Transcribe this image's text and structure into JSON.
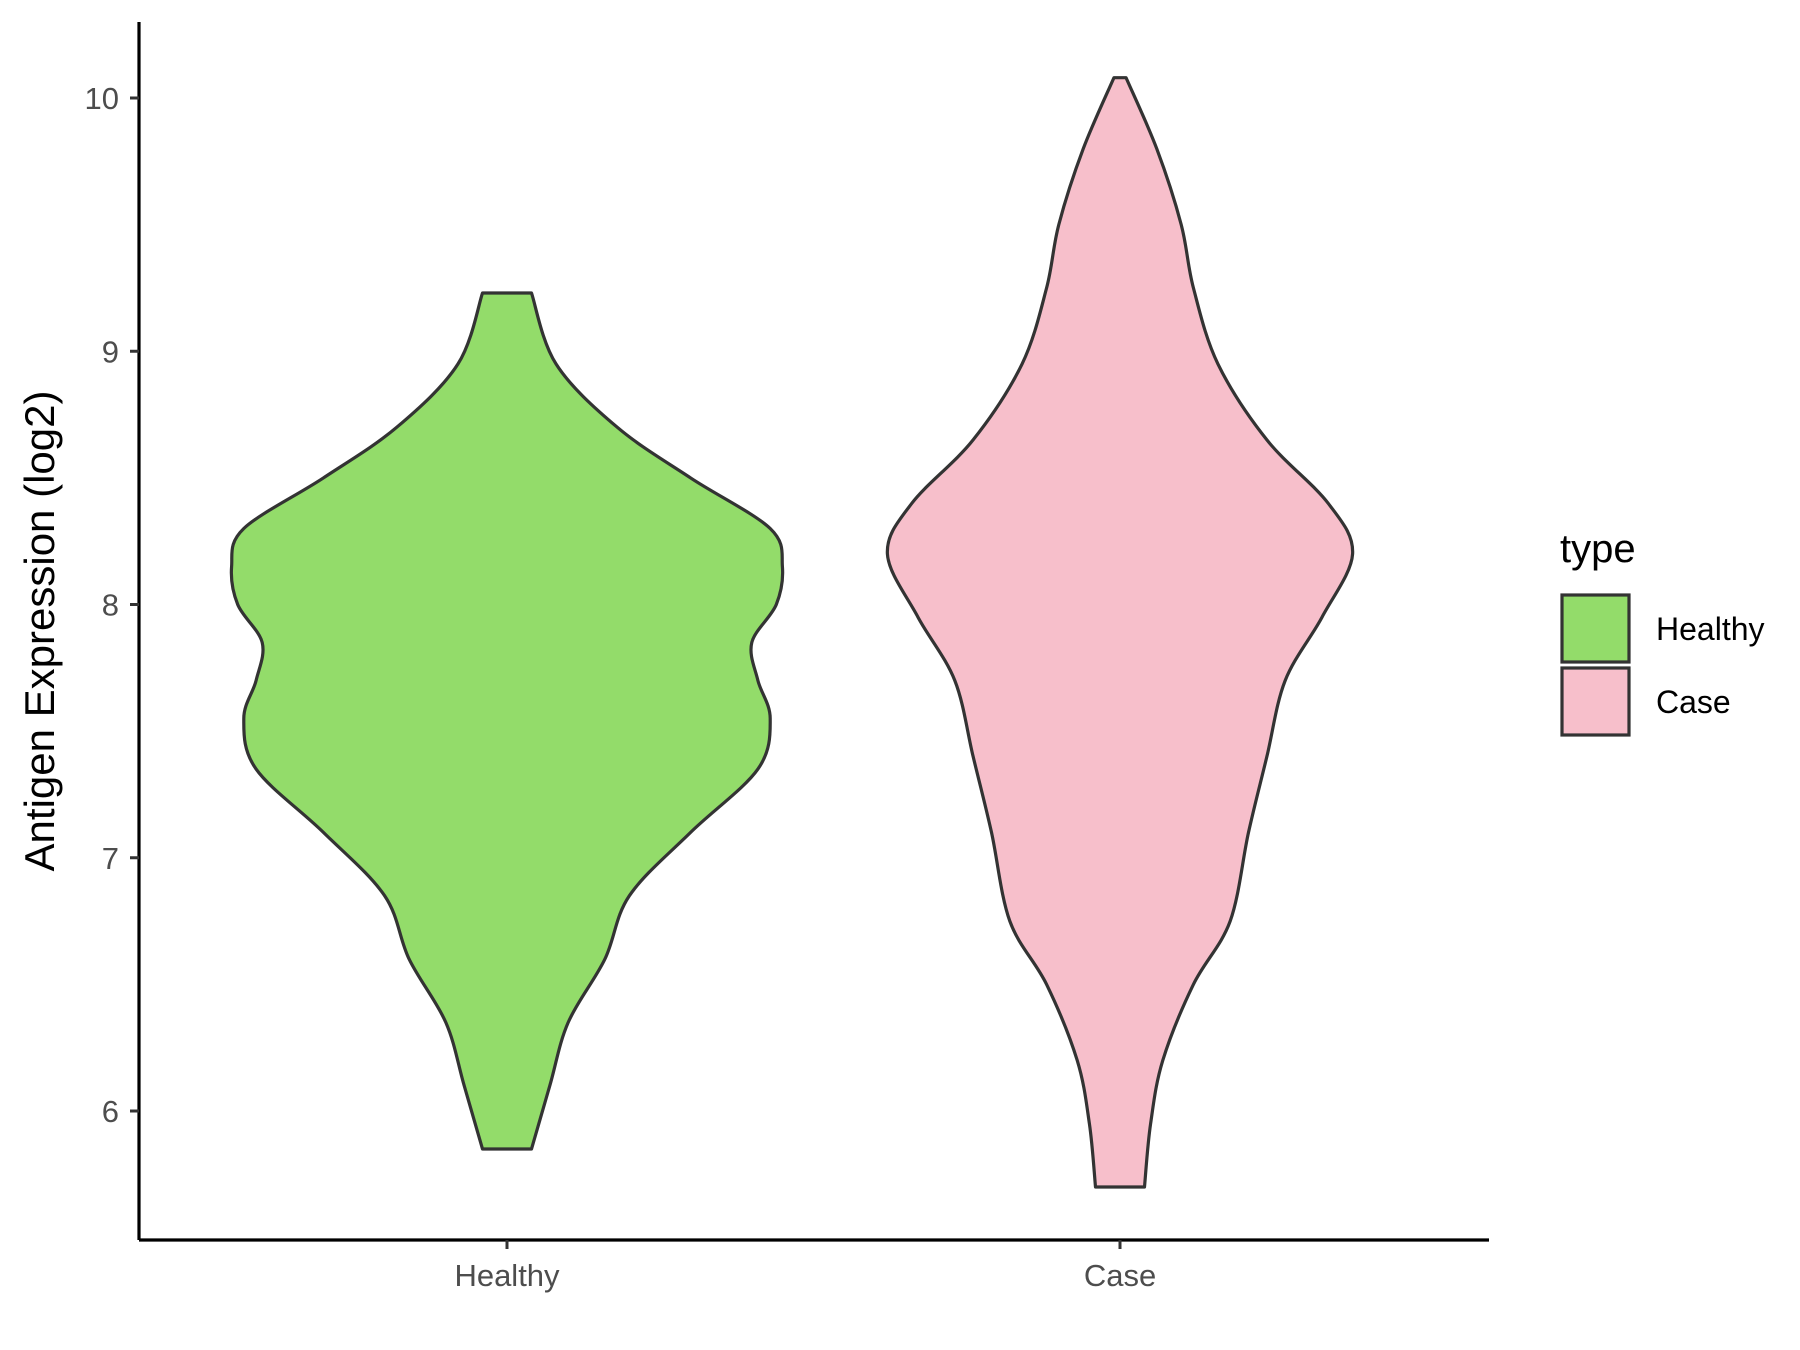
{
  "chart_data": {
    "type": "violin",
    "title": "",
    "xlabel": "",
    "ylabel": "Antigen Expression (log2)",
    "categories": [
      "Healthy",
      "Case"
    ],
    "ylim": [
      5.5,
      10.3
    ],
    "yticks": [
      6,
      7,
      8,
      9,
      10
    ],
    "grid": false,
    "legend": {
      "title": "type",
      "position": "right",
      "entries": [
        {
          "label": "Healthy",
          "color": "#93DC6A"
        },
        {
          "label": "Case",
          "color": "#F7BFCB"
        }
      ]
    },
    "series": [
      {
        "category": "Healthy",
        "color": "#93DC6A",
        "min": 5.85,
        "max": 9.23,
        "density_profile": [
          {
            "y": 5.85,
            "half_width": 0.04
          },
          {
            "y": 6.1,
            "half_width": 0.07
          },
          {
            "y": 6.35,
            "half_width": 0.1
          },
          {
            "y": 6.6,
            "half_width": 0.16
          },
          {
            "y": 6.85,
            "half_width": 0.2
          },
          {
            "y": 7.1,
            "half_width": 0.3
          },
          {
            "y": 7.35,
            "half_width": 0.41
          },
          {
            "y": 7.55,
            "half_width": 0.43
          },
          {
            "y": 7.7,
            "half_width": 0.41
          },
          {
            "y": 7.85,
            "half_width": 0.4
          },
          {
            "y": 8.0,
            "half_width": 0.44
          },
          {
            "y": 8.15,
            "half_width": 0.45
          },
          {
            "y": 8.3,
            "half_width": 0.43
          },
          {
            "y": 8.5,
            "half_width": 0.3
          },
          {
            "y": 8.7,
            "half_width": 0.18
          },
          {
            "y": 8.95,
            "half_width": 0.08
          },
          {
            "y": 9.23,
            "half_width": 0.04
          }
        ]
      },
      {
        "category": "Case",
        "color": "#F7BFCB",
        "min": 5.7,
        "max": 10.08,
        "density_profile": [
          {
            "y": 5.7,
            "half_width": 0.04
          },
          {
            "y": 5.95,
            "half_width": 0.05
          },
          {
            "y": 6.2,
            "half_width": 0.07
          },
          {
            "y": 6.5,
            "half_width": 0.12
          },
          {
            "y": 6.75,
            "half_width": 0.18
          },
          {
            "y": 7.1,
            "half_width": 0.21
          },
          {
            "y": 7.4,
            "half_width": 0.24
          },
          {
            "y": 7.7,
            "half_width": 0.27
          },
          {
            "y": 7.95,
            "half_width": 0.33
          },
          {
            "y": 8.2,
            "half_width": 0.38
          },
          {
            "y": 8.4,
            "half_width": 0.34
          },
          {
            "y": 8.65,
            "half_width": 0.24
          },
          {
            "y": 8.95,
            "half_width": 0.16
          },
          {
            "y": 9.25,
            "half_width": 0.12
          },
          {
            "y": 9.5,
            "half_width": 0.1
          },
          {
            "y": 9.8,
            "half_width": 0.06
          },
          {
            "y": 10.08,
            "half_width": 0.01
          }
        ]
      }
    ]
  }
}
